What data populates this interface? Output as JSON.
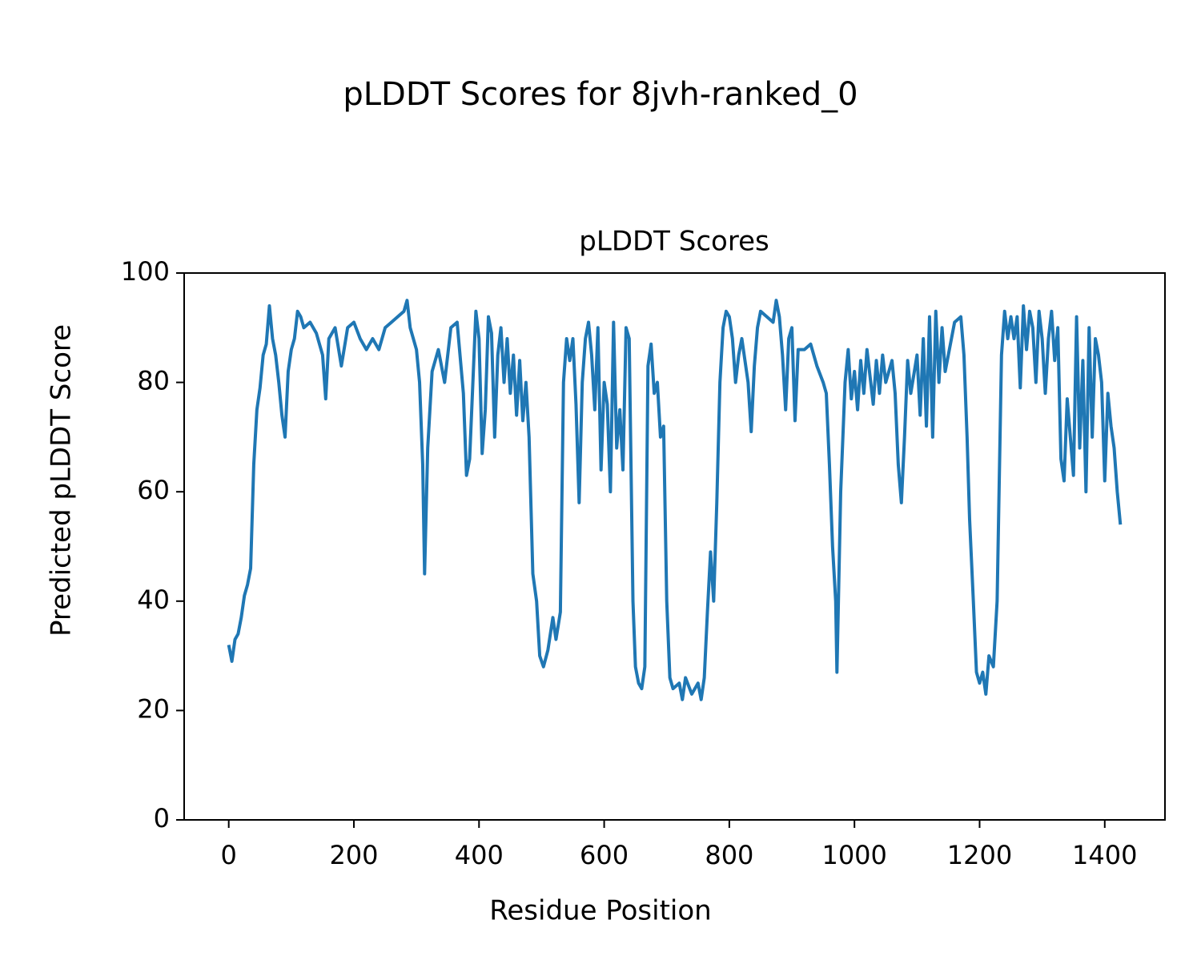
{
  "chart_data": {
    "type": "line",
    "title": "pLDDT Scores for 8jvh-ranked_0",
    "subtitle": "pLDDT Scores",
    "x_label": "Residue Position",
    "y_label": "Predicted pLDDT Score",
    "color": "#1f77b4",
    "xlim": [
      -71.25,
      1496.25
    ],
    "ylim": [
      0,
      100
    ],
    "xticks": [
      0,
      200,
      400,
      600,
      800,
      1000,
      1200,
      1400
    ],
    "yticks": [
      0,
      20,
      40,
      60,
      80,
      100
    ],
    "x": [
      0,
      5,
      10,
      15,
      20,
      25,
      30,
      35,
      40,
      45,
      50,
      55,
      60,
      65,
      70,
      75,
      80,
      85,
      90,
      95,
      100,
      105,
      110,
      115,
      120,
      130,
      140,
      150,
      155,
      160,
      170,
      180,
      190,
      200,
      210,
      220,
      230,
      240,
      250,
      260,
      270,
      280,
      285,
      290,
      295,
      300,
      305,
      310,
      313,
      318,
      325,
      335,
      345,
      355,
      365,
      375,
      380,
      385,
      395,
      400,
      405,
      410,
      415,
      420,
      425,
      430,
      435,
      440,
      445,
      450,
      455,
      460,
      465,
      470,
      475,
      480,
      486,
      492,
      497,
      503,
      510,
      518,
      523,
      530,
      535,
      540,
      545,
      550,
      555,
      560,
      565,
      570,
      575,
      580,
      585,
      590,
      595,
      600,
      605,
      610,
      615,
      620,
      625,
      630,
      635,
      640,
      646,
      650,
      655,
      660,
      665,
      670,
      675,
      680,
      685,
      690,
      695,
      700,
      705,
      710,
      720,
      725,
      730,
      740,
      750,
      755,
      760,
      765,
      770,
      775,
      780,
      785,
      790,
      795,
      800,
      805,
      810,
      815,
      820,
      830,
      835,
      840,
      845,
      850,
      860,
      870,
      875,
      880,
      885,
      890,
      895,
      900,
      905,
      910,
      920,
      930,
      940,
      950,
      955,
      960,
      965,
      970,
      972,
      978,
      985,
      990,
      995,
      1000,
      1005,
      1010,
      1015,
      1020,
      1030,
      1035,
      1040,
      1045,
      1050,
      1060,
      1065,
      1070,
      1075,
      1080,
      1085,
      1090,
      1100,
      1105,
      1110,
      1115,
      1120,
      1125,
      1130,
      1135,
      1140,
      1145,
      1150,
      1160,
      1170,
      1175,
      1180,
      1184,
      1190,
      1195,
      1200,
      1205,
      1210,
      1215,
      1222,
      1228,
      1235,
      1240,
      1245,
      1250,
      1255,
      1260,
      1265,
      1270,
      1275,
      1280,
      1285,
      1290,
      1295,
      1300,
      1305,
      1310,
      1315,
      1320,
      1325,
      1330,
      1335,
      1340,
      1345,
      1350,
      1355,
      1360,
      1365,
      1370,
      1375,
      1380,
      1385,
      1390,
      1395,
      1400,
      1405,
      1410,
      1415,
      1420,
      1425
    ],
    "y": [
      32,
      29,
      33,
      34,
      37,
      41,
      43,
      46,
      65,
      75,
      79,
      85,
      87,
      94,
      88,
      85,
      80,
      74,
      70,
      82,
      86,
      88,
      93,
      92,
      90,
      91,
      89,
      85,
      77,
      88,
      90,
      83,
      90,
      91,
      88,
      86,
      88,
      86,
      90,
      91,
      92,
      93,
      95,
      90,
      88,
      86,
      80,
      65,
      45,
      68,
      82,
      86,
      80,
      90,
      91,
      78,
      63,
      66,
      93,
      88,
      67,
      75,
      92,
      89,
      70,
      85,
      90,
      80,
      88,
      78,
      85,
      74,
      84,
      73,
      80,
      70,
      45,
      40,
      30,
      28,
      31,
      37,
      33,
      38,
      80,
      88,
      84,
      88,
      76,
      58,
      80,
      88,
      91,
      85,
      75,
      90,
      64,
      80,
      76,
      60,
      91,
      68,
      75,
      64,
      90,
      88,
      40,
      28,
      25,
      24,
      28,
      83,
      87,
      78,
      80,
      70,
      72,
      40,
      26,
      24,
      25,
      22,
      26,
      23,
      25,
      22,
      26,
      38,
      49,
      40,
      58,
      80,
      90,
      93,
      92,
      88,
      80,
      85,
      88,
      80,
      71,
      83,
      90,
      93,
      92,
      91,
      95,
      92,
      85,
      75,
      88,
      90,
      73,
      86,
      86,
      87,
      83,
      80,
      78,
      65,
      50,
      40,
      27,
      60,
      80,
      86,
      77,
      82,
      75,
      84,
      78,
      86,
      76,
      84,
      78,
      85,
      80,
      84,
      78,
      65,
      58,
      70,
      84,
      78,
      85,
      74,
      88,
      72,
      92,
      70,
      93,
      80,
      90,
      82,
      85,
      91,
      92,
      85,
      70,
      55,
      40,
      27,
      25,
      27,
      23,
      30,
      28,
      40,
      85,
      93,
      88,
      92,
      88,
      92,
      79,
      94,
      86,
      93,
      90,
      80,
      93,
      88,
      78,
      88,
      93,
      84,
      90,
      66,
      62,
      77,
      70,
      63,
      92,
      68,
      84,
      60,
      90,
      70,
      88,
      85,
      80,
      62,
      78,
      72,
      68,
      60,
      54
    ]
  }
}
